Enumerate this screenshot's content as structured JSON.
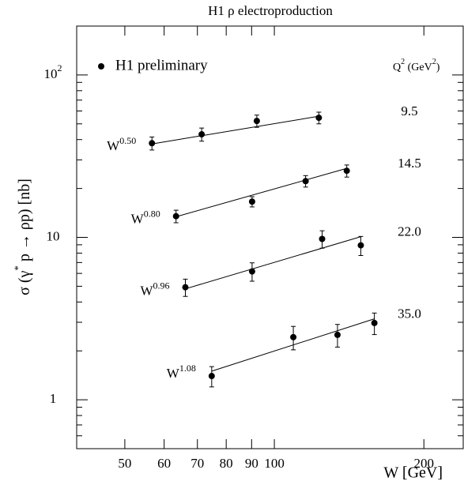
{
  "chart_data": {
    "type": "scatter",
    "title": "H1 ρ  electroproduction",
    "xlabel": "W  [GeV]",
    "ylabel": [
      "σ (γ",
      "*",
      " p → ρp)  [nb]"
    ],
    "legend_label": "H1 preliminary",
    "legend_header": [
      "Q",
      "2",
      " (GeV",
      "2",
      ")"
    ],
    "log_x": true,
    "log_y": true,
    "xlim": [
      40,
      240
    ],
    "ylim": [
      0.5,
      200
    ],
    "xticks": [
      50,
      60,
      70,
      80,
      90,
      100,
      200
    ],
    "yticks": [
      1,
      10,
      {
        "value": 100,
        "label": "10",
        "exponent": "2"
      }
    ],
    "yminor_ticks": [
      0.6,
      0.7,
      0.8,
      0.9,
      2,
      3,
      4,
      5,
      6,
      7,
      8,
      9,
      20,
      30,
      40,
      50,
      60,
      70,
      80,
      90,
      200
    ],
    "color": "#000000",
    "series": [
      {
        "name": "9.5",
        "x": [
          56.7,
          71.4,
          92.2,
          122.9
        ],
        "values": [
          38.0,
          43.1,
          52.1,
          54.5
        ],
        "errors": [
          3.5,
          4,
          4.5,
          4.5
        ],
        "fit": {
          "base": "W",
          "exponent": "0.50",
          "x": [
            56.7,
            122.9
          ],
          "values": [
            37.6,
            55.7
          ]
        }
      },
      {
        "name": "14.5",
        "x": [
          63.4,
          90.2,
          115.6,
          139.9
        ],
        "values": [
          13.5,
          16.6,
          22.2,
          25.7
        ],
        "errors": [
          1.2,
          1.2,
          1.8,
          2.2
        ],
        "fit": {
          "base": "W",
          "exponent": "0.80",
          "x": [
            63.4,
            139.9
          ],
          "values": [
            13.4,
            26.6
          ]
        }
      },
      {
        "name": "22.0",
        "x": [
          66.2,
          90.2,
          124.8,
          149.3
        ],
        "values": [
          4.93,
          6.17,
          9.78,
          8.93
        ],
        "errors": [
          0.6,
          0.8,
          1.2,
          1.2
        ],
        "fit": {
          "base": "W",
          "exponent": "0.96",
          "x": [
            66.2,
            149.3
          ],
          "values": [
            4.82,
            10.1
          ]
        }
      },
      {
        "name": "35.0",
        "x": [
          74.8,
          109.2,
          134,
          159
        ],
        "values": [
          1.4,
          2.43,
          2.51,
          2.97
        ],
        "errors": [
          0.2,
          0.4,
          0.4,
          0.45
        ],
        "fit": {
          "base": "W",
          "exponent": "1.08",
          "x": [
            74.8,
            159
          ],
          "values": [
            1.5,
            3.15
          ]
        }
      }
    ]
  }
}
